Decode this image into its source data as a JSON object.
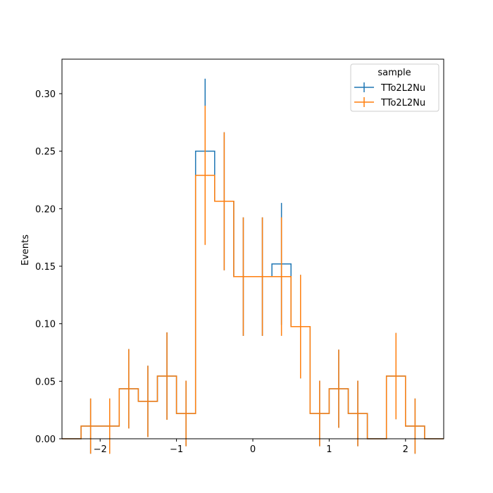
{
  "chart_data": {
    "type": "step",
    "ylabel": "Events",
    "xlim": [
      -2.5,
      2.5
    ],
    "ylim": [
      0,
      0.33
    ],
    "bin_edges": [
      -2.5,
      -2.25,
      -2.0,
      -1.75,
      -1.5,
      -1.25,
      -1.0,
      -0.75,
      -0.5,
      -0.25,
      0.0,
      0.25,
      0.5,
      0.75,
      1.0,
      1.25,
      1.5,
      1.75,
      2.0,
      2.25,
      2.5
    ],
    "x_ticks": [
      -2,
      -1,
      0,
      1,
      2
    ],
    "x_tick_labels": [
      "−2",
      "−1",
      "0",
      "1",
      "2"
    ],
    "y_ticks": [
      0.0,
      0.05,
      0.1,
      0.15,
      0.2,
      0.25,
      0.3
    ],
    "y_tick_labels": [
      "0.00",
      "0.05",
      "0.10",
      "0.15",
      "0.20",
      "0.25",
      "0.30"
    ],
    "legend": {
      "title": "sample",
      "placement": "upper right"
    },
    "series": [
      {
        "name": "TTo2L2Nu",
        "color": "#1f77b4",
        "values": [
          0,
          0.011,
          0.011,
          0.0435,
          0.0325,
          0.0545,
          0.022,
          0.25,
          0.2065,
          0.141,
          0.141,
          0.152,
          0.0975,
          0.022,
          0.0435,
          0.022,
          0,
          0.0545,
          0.011,
          0
        ],
        "errors": [
          0,
          0.024,
          0.024,
          0.0345,
          0.031,
          0.038,
          0.0285,
          0.063,
          0.06,
          0.0515,
          0.0515,
          0.053,
          0.045,
          0.0285,
          0.034,
          0.0285,
          0,
          0.0375,
          0.024,
          0
        ]
      },
      {
        "name": "TTo2L2Nu",
        "color": "#ff7f0e",
        "values": [
          0,
          0.011,
          0.011,
          0.0435,
          0.0325,
          0.0545,
          0.022,
          0.229,
          0.2065,
          0.141,
          0.141,
          0.141,
          0.0975,
          0.022,
          0.0435,
          0.022,
          0,
          0.0545,
          0.011,
          0
        ],
        "errors": [
          0,
          0.024,
          0.024,
          0.0345,
          0.031,
          0.038,
          0.0285,
          0.0605,
          0.06,
          0.0515,
          0.0515,
          0.0515,
          0.045,
          0.0285,
          0.034,
          0.0285,
          0,
          0.0375,
          0.024,
          0
        ]
      }
    ]
  }
}
